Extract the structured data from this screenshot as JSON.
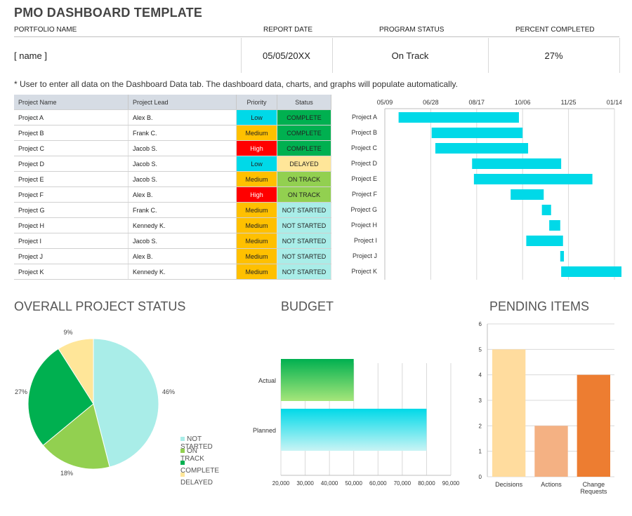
{
  "title": "PMO DASHBOARD TEMPLATE",
  "header": {
    "labels": [
      "PORTFOLIO NAME",
      "REPORT DATE",
      "PROGRAM STATUS",
      "PERCENT COMPLETED"
    ],
    "portfolio_name": "[ name ]",
    "report_date": "05/05/20XX",
    "program_status": "On Track",
    "percent_completed": "27%"
  },
  "note": "* User to enter all data on the Dashboard Data tab.  The dashboard data, charts, and graphs will populate automatically.",
  "table": {
    "columns": [
      "Project Name",
      "Project Lead",
      "Priority",
      "Status"
    ],
    "rows": [
      [
        "Project A",
        "Alex B.",
        "Low",
        "COMPLETE"
      ],
      [
        "Project B",
        "Frank C.",
        "Medium",
        "COMPLETE"
      ],
      [
        "Project C",
        "Jacob S.",
        "High",
        "COMPLETE"
      ],
      [
        "Project D",
        "Jacob S.",
        "Low",
        "DELAYED"
      ],
      [
        "Project E",
        "Jacob S.",
        "Medium",
        "ON TRACK"
      ],
      [
        "Project F",
        "Alex B.",
        "High",
        "ON TRACK"
      ],
      [
        "Project G",
        "Frank C.",
        "Medium",
        "NOT STARTED"
      ],
      [
        "Project H",
        "Kennedy K.",
        "Medium",
        "NOT STARTED"
      ],
      [
        "Project I",
        "Jacob S.",
        "Medium",
        "NOT STARTED"
      ],
      [
        "Project J",
        "Alex B.",
        "Medium",
        "NOT STARTED"
      ],
      [
        "Project K",
        "Kennedy K.",
        "Medium",
        "NOT STARTED"
      ]
    ],
    "priority_colors": {
      "Low": "#00d9e8",
      "Medium": "#ffc000",
      "High": "#ff0000"
    },
    "status_colors": {
      "COMPLETE": "#00b050",
      "DELAYED": "#ffe699",
      "ON TRACK": "#92d050",
      "NOT STARTED": "#a9ede8"
    }
  },
  "sections": {
    "overall": "OVERALL PROJECT STATUS",
    "budget": "BUDGET",
    "pending": "PENDING ITEMS"
  },
  "chart_data": [
    {
      "type": "bar",
      "orientation": "horizontal-range",
      "categories": [
        "Project A",
        "Project B",
        "Project C",
        "Project D",
        "Project E",
        "Project F",
        "Project G",
        "Project H",
        "Project I",
        "Project J",
        "Project K"
      ],
      "x_ticks": [
        "05/09",
        "06/28",
        "08/17",
        "10/06",
        "11/25",
        "01/14"
      ],
      "starts": [
        "05/24",
        "06/29",
        "07/03",
        "08/12",
        "08/14",
        "09/23",
        "10/27",
        "11/04",
        "09/40",
        "11/16",
        "11/17"
      ],
      "ends": [
        "10/02",
        "10/06",
        "10/12",
        "11/17",
        "12/21",
        "10/29",
        "11/06",
        "11/16",
        "11/19",
        "11/20",
        "01/27"
      ],
      "color": "#00d9e8"
    },
    {
      "type": "pie",
      "labels": [
        "NOT STARTED",
        "ON TRACK",
        "COMPLETE",
        "DELAYED"
      ],
      "values": [
        46,
        18,
        27,
        9
      ],
      "value_labels": [
        "46%",
        "18%",
        "27%",
        "9%"
      ],
      "colors": [
        "#a9ede8",
        "#92d050",
        "#00b050",
        "#ffe699"
      ],
      "legend": "right"
    },
    {
      "type": "bar",
      "orientation": "horizontal",
      "categories": [
        "Actual",
        "Planned"
      ],
      "values": [
        50000,
        80000
      ],
      "xlim": [
        20000,
        90000
      ],
      "x_ticks": [
        "20,000",
        "30,000",
        "40,000",
        "50,000",
        "60,000",
        "70,000",
        "80,000",
        "90,000"
      ],
      "colors": [
        "#00b050",
        "#00d9e8"
      ]
    },
    {
      "type": "bar",
      "categories": [
        "Decisions",
        "Actions",
        "Change Requests"
      ],
      "category_lines": [
        [
          "Decisions"
        ],
        [
          "Actions"
        ],
        [
          "Change",
          "Requests"
        ]
      ],
      "values": [
        5,
        2,
        4
      ],
      "ylim": [
        0,
        6
      ],
      "y_ticks": [
        "0",
        "1",
        "2",
        "3",
        "4",
        "5",
        "6"
      ],
      "colors": [
        "#ffdc9e",
        "#f4b183",
        "#ed7d31"
      ]
    }
  ]
}
